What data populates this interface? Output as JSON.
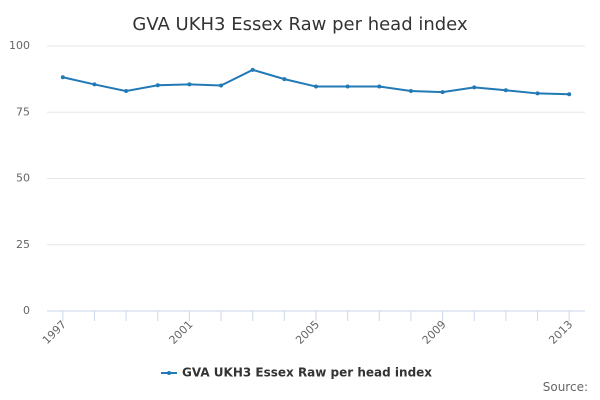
{
  "chart_data": {
    "type": "line",
    "title": "GVA UKH3 Essex Raw per head index",
    "x": [
      1997,
      1998,
      1999,
      2000,
      2001,
      2002,
      2003,
      2004,
      2005,
      2006,
      2007,
      2008,
      2009,
      2010,
      2011,
      2012,
      2013
    ],
    "series": [
      {
        "name": "GVA UKH3 Essex Raw per head index",
        "color": "#2179b5",
        "values": [
          88.2,
          85.5,
          83.0,
          85.2,
          85.5,
          85.1,
          91.0,
          87.5,
          84.7,
          84.7,
          84.7,
          83.0,
          82.6,
          84.4,
          83.3,
          82.1,
          81.8
        ]
      }
    ],
    "xlim": [
      1996.5,
      2013.5
    ],
    "xticks": [
      1997,
      2001,
      2005,
      2009,
      2013
    ],
    "ylim": [
      0,
      100
    ],
    "yticks": [
      0,
      25,
      50,
      75,
      100
    ],
    "grid": true,
    "source": "Source:"
  }
}
